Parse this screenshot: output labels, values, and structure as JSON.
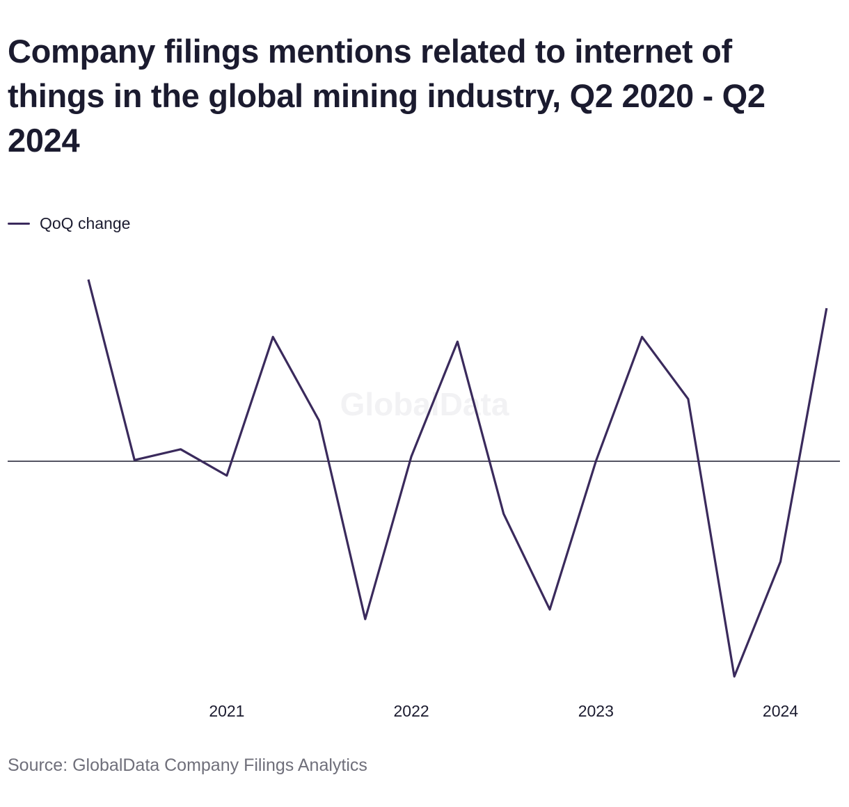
{
  "title": "Company filings mentions related to internet of things in the global mining industry, Q2 2020 - Q2 2024",
  "source": "Source: GlobalData Company Filings Analytics",
  "watermark": "GlobalData",
  "colors": {
    "series": "#3a2a5c",
    "zero_line": "#1b1b2f",
    "title": "#1b1b2f",
    "source": "#6f6f7a"
  },
  "chart_data": {
    "type": "line",
    "x": [
      "Q2 2020",
      "Q3 2020",
      "Q4 2020",
      "Q1 2021",
      "Q2 2021",
      "Q3 2021",
      "Q4 2021",
      "Q1 2022",
      "Q2 2022",
      "Q3 2022",
      "Q4 2022",
      "Q1 2023",
      "Q2 2023",
      "Q3 2023",
      "Q4 2023",
      "Q1 2024",
      "Q2 2024"
    ],
    "x_tick_labels": [
      {
        "label": "2021",
        "at": "Q1 2021"
      },
      {
        "label": "2022",
        "at": "Q1 2022"
      },
      {
        "label": "2023",
        "at": "Q1 2023"
      },
      {
        "label": "2024",
        "at": "Q1 2024"
      }
    ],
    "series": [
      {
        "name": "QoQ change",
        "values": [
          7.6,
          0.05,
          0.5,
          -0.6,
          5.2,
          1.7,
          -6.6,
          0.2,
          5.0,
          -2.2,
          -6.2,
          0.0,
          5.2,
          2.6,
          -9.0,
          -4.2,
          6.4
        ]
      }
    ],
    "ylim": [
      -10,
      8
    ],
    "y_reference_line": 0,
    "y_tick_labels_shown": false,
    "grid": false,
    "legend_position": "top-left",
    "xlabel": "",
    "ylabel": ""
  }
}
